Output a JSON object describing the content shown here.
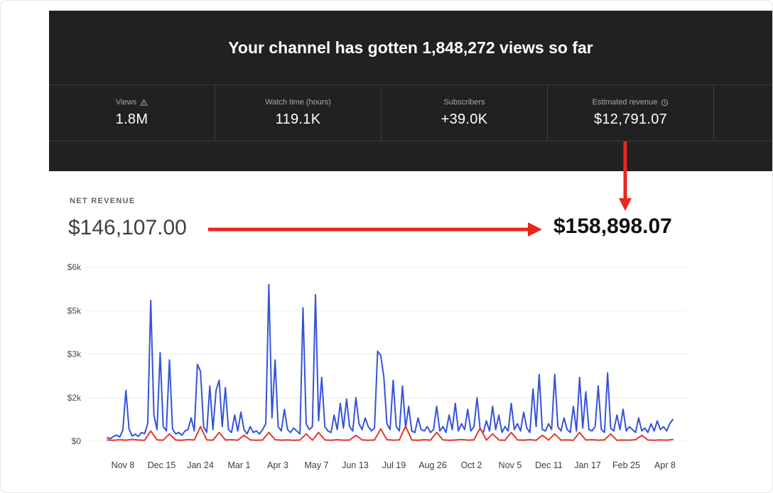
{
  "header": {
    "title": "Your channel has gotten 1,848,272 views so far",
    "stats": [
      {
        "label": "Views",
        "icon": "warning-icon",
        "value": "1.8M"
      },
      {
        "label": "Watch time (hours)",
        "icon": null,
        "value": "119.1K"
      },
      {
        "label": "Subscribers",
        "icon": null,
        "value": "+39.0K"
      },
      {
        "label": "Estimated revenue",
        "icon": "clock-icon",
        "value": "$12,791.07"
      }
    ]
  },
  "revenue": {
    "section_label": "NET REVENUE",
    "before_value": "$146,107.00",
    "after_value": "$158,898.07"
  },
  "colors": {
    "panel_bg": "#212121",
    "accent_red": "#e8271c",
    "chart_blue": "#3553d8",
    "chart_red": "#e8372a",
    "grid": "#ececec",
    "axis_text": "#4d4d4d"
  },
  "chart_data": {
    "type": "line",
    "title": "",
    "xlabel": "",
    "ylabel": "",
    "ylim": [
      0,
      6000
    ],
    "grid": true,
    "legend": "none",
    "y_tick_labels": [
      "$6k",
      "$5k",
      "$3k",
      "$2k",
      "$0"
    ],
    "x_tick_labels": [
      "Nov 8",
      "Dec 15",
      "Jan 24",
      "Mar 1",
      "Apr 3",
      "May 7",
      "Jun 13",
      "Jul 19",
      "Aug 26",
      "Oct 2",
      "Nov 5",
      "Dec 11",
      "Jan 17",
      "Feb 25",
      "Apr 8"
    ],
    "series": [
      {
        "name": "net-revenue-daily",
        "color": "#3553d8",
        "values": [
          120,
          90,
          160,
          210,
          140,
          380,
          1750,
          420,
          180,
          240,
          160,
          300,
          260,
          600,
          4850,
          900,
          400,
          3050,
          500,
          350,
          2800,
          420,
          250,
          300,
          200,
          350,
          400,
          800,
          350,
          2650,
          2400,
          500,
          300,
          1900,
          400,
          1750,
          2100,
          500,
          1850,
          400,
          300,
          900,
          350,
          1000,
          400,
          250,
          500,
          300,
          350,
          250,
          400,
          600,
          5400,
          800,
          2800,
          500,
          350,
          1100,
          400,
          300,
          450,
          350,
          250,
          4600,
          600,
          400,
          500,
          5050,
          700,
          2200,
          500,
          350,
          300,
          900,
          400,
          1300,
          450,
          1450,
          500,
          350,
          1500,
          600,
          400,
          800,
          500,
          350,
          450,
          3100,
          2950,
          2200,
          600,
          400,
          2100,
          500,
          350,
          1900,
          450,
          1200,
          350,
          300,
          800,
          400,
          350,
          500,
          300,
          400,
          1200,
          350,
          500,
          300,
          900,
          400,
          1300,
          350,
          600,
          400,
          1100,
          350,
          500,
          1500,
          400,
          300,
          700,
          350,
          1200,
          400,
          900,
          300,
          500,
          350,
          1300,
          400,
          600,
          350,
          1000,
          450,
          300,
          1800,
          500,
          2300,
          400,
          350,
          600,
          400,
          2300,
          500,
          350,
          800,
          400,
          300,
          1200,
          350,
          2200,
          450,
          1700,
          400,
          350,
          500,
          1900,
          400,
          300,
          2350,
          450,
          350,
          900,
          400,
          1100,
          350,
          500,
          400,
          300,
          800,
          350,
          450,
          300,
          600,
          350,
          700,
          400,
          500,
          350,
          600,
          750
        ]
      },
      {
        "name": "secondary-revenue-daily",
        "color": "#e8372a",
        "values": [
          40,
          30,
          50,
          35,
          60,
          40,
          30,
          350,
          45,
          35,
          250,
          40,
          30,
          55,
          40,
          500,
          45,
          35,
          300,
          40,
          50,
          35,
          200,
          45,
          30,
          40,
          300,
          50,
          35,
          45,
          30,
          40,
          250,
          35,
          300,
          45,
          30,
          50,
          35,
          40,
          200,
          45,
          30,
          40,
          420,
          50,
          35,
          45,
          520,
          40,
          30,
          50,
          35,
          300,
          45,
          30,
          40,
          55,
          35,
          45,
          450,
          35,
          250,
          40,
          30,
          300,
          45,
          35,
          50,
          30,
          200,
          40,
          250,
          35,
          45,
          30,
          300,
          40,
          50,
          35,
          45,
          250,
          30,
          40,
          35,
          50,
          200,
          40,
          30,
          45,
          35,
          55
        ]
      }
    ]
  }
}
